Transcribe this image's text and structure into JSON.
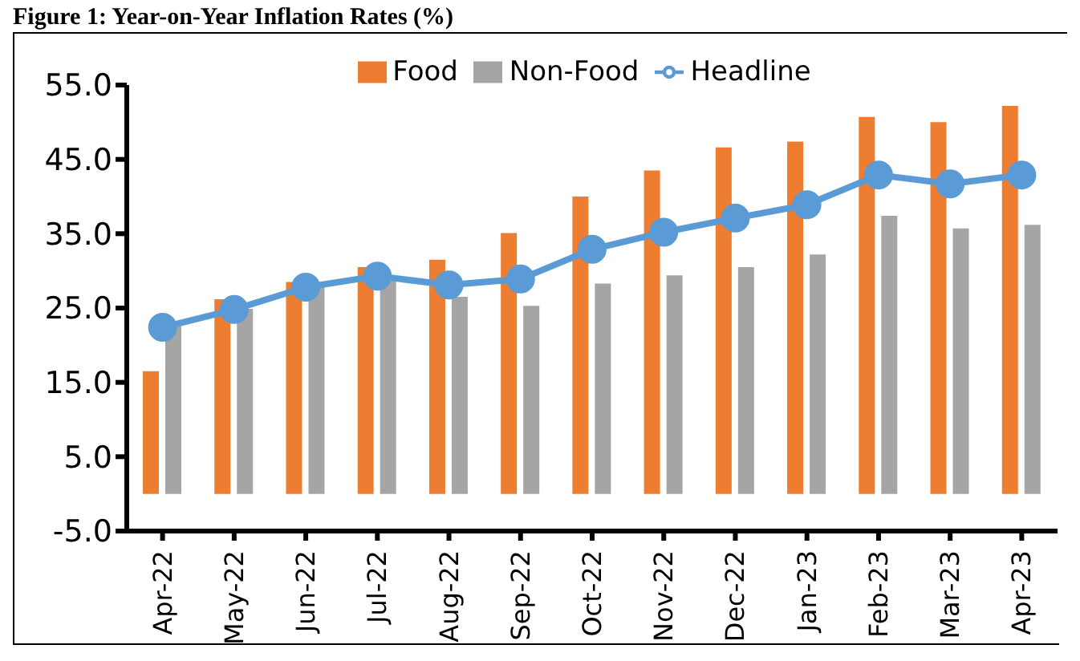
{
  "chart_data": {
    "type": "bar",
    "title": "Figure 1: Year-on-Year Inflation Rates (%)",
    "categories": [
      "Apr-22",
      "May-22",
      "Jun-22",
      "Jul-22",
      "Aug-22",
      "Sep-22",
      "Oct-22",
      "Nov-22",
      "Dec-22",
      "Jan-23",
      "Feb-23",
      "Mar-23",
      "Apr-23"
    ],
    "series": [
      {
        "name": "Food",
        "color": "#ed7d31",
        "values": [
          16.5,
          26.2,
          28.5,
          30.5,
          31.5,
          35.1,
          40.0,
          43.5,
          46.6,
          47.4,
          50.7,
          50.0,
          52.2
        ]
      },
      {
        "name": "Non-Food",
        "color": "#a5a5a5",
        "values": [
          22.8,
          24.9,
          28.0,
          29.0,
          26.5,
          25.3,
          28.3,
          29.4,
          30.5,
          32.2,
          37.4,
          35.7,
          36.2
        ]
      },
      {
        "name": "Headline",
        "type": "line",
        "color": "#5b9bd5",
        "values": [
          22.4,
          24.8,
          27.8,
          29.3,
          28.1,
          28.9,
          32.9,
          35.2,
          37.1,
          38.9,
          42.9,
          41.7,
          42.9
        ]
      }
    ],
    "ylim": [
      -5,
      55
    ],
    "yticks": [
      {
        "value": -5,
        "label": "-5.0"
      },
      {
        "value": 5,
        "label": "5.0"
      },
      {
        "value": 15,
        "label": "15.0"
      },
      {
        "value": 25,
        "label": "25.0"
      },
      {
        "value": 35,
        "label": "35.0"
      },
      {
        "value": 45,
        "label": "45.0"
      },
      {
        "value": 55,
        "label": "55.0"
      }
    ],
    "legend": "top",
    "marker": "circle",
    "line_style": "solid"
  }
}
